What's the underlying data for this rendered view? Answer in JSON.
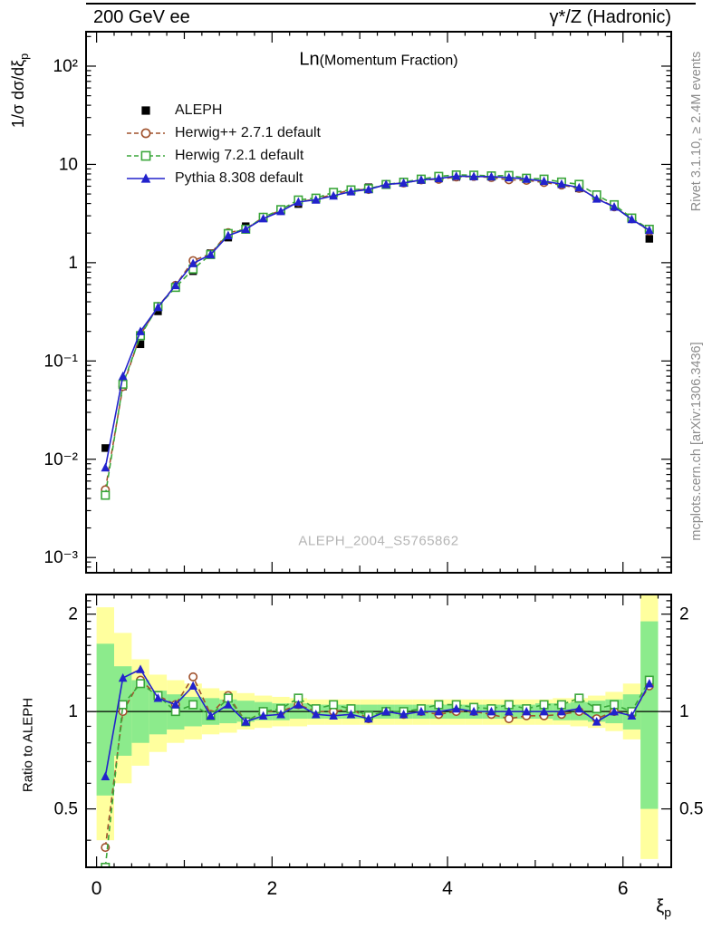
{
  "header": {
    "left": "200 GeV ee",
    "right": "γ*/Z (Hadronic)"
  },
  "titles": {
    "main": "Ln",
    "sub": "(Momentum Fraction)",
    "watermark": "ALEPH_2004_S5765862"
  },
  "side_notes": {
    "top_right": "Rivet 3.1.10, ≥ 2.4M events",
    "bottom_right": "mcplots.cern.ch [arXiv:1306.3436]"
  },
  "axes": {
    "ylabel_main": "1/σ dσ/dξ",
    "ylabel_main_sub": "p",
    "ylabel_ratio": "Ratio to ALEPH",
    "xlabel": "ξ",
    "xlabel_sub": "p"
  },
  "chart_data": {
    "type": "line",
    "title": "Ln(Momentum Fraction)",
    "xlabel": "ξ_p",
    "xlim": [
      -0.12,
      6.55
    ],
    "bin_width": 0.2,
    "xticks": [
      {
        "value": 0,
        "label": "0"
      },
      {
        "value": 2,
        "label": "2"
      },
      {
        "value": 4,
        "label": "4"
      },
      {
        "value": 6,
        "label": "6"
      }
    ],
    "x": [
      0.1,
      0.3,
      0.5,
      0.7,
      0.9,
      1.1,
      1.3,
      1.5,
      1.7,
      1.9,
      2.1,
      2.3,
      2.5,
      2.7,
      2.9,
      3.1,
      3.3,
      3.5,
      3.7,
      3.9,
      4.1,
      4.3,
      4.5,
      4.7,
      4.9,
      5.1,
      5.3,
      5.5,
      5.7,
      5.9,
      6.1,
      6.3
    ],
    "main_panel": {
      "ylabel": "1/σ dσ/dξ_p",
      "yscale": "log",
      "ylim": [
        0.0007,
        224
      ],
      "yticks": [
        {
          "value": 0.001,
          "label": "10⁻³"
        },
        {
          "value": 0.01,
          "label": "10⁻²"
        },
        {
          "value": 0.1,
          "label": "10⁻¹"
        },
        {
          "value": 1,
          "label": "1"
        },
        {
          "value": 10,
          "label": "10"
        },
        {
          "value": 100,
          "label": "10²"
        }
      ],
      "series": [
        {
          "name": "ALEPH",
          "color": "#000000",
          "marker": "square-filled",
          "line": "none",
          "values": [
            0.013,
            0.055,
            0.148,
            0.32,
            0.56,
            0.82,
            1.25,
            1.8,
            2.35,
            2.9,
            3.4,
            3.95,
            4.45,
            4.95,
            5.4,
            5.85,
            6.25,
            6.6,
            6.95,
            7.2,
            7.45,
            7.55,
            7.5,
            7.35,
            7.1,
            6.75,
            6.3,
            5.7,
            4.8,
            3.7,
            2.85,
            1.75
          ]
        },
        {
          "name": "Herwig++ 2.7.1 default",
          "color": "#a0522d",
          "marker": "circle-open",
          "line": "dashed",
          "values": [
            0.0049,
            0.055,
            0.185,
            0.358,
            0.588,
            1.05,
            1.23,
            2.02,
            2.19,
            2.9,
            3.4,
            4.15,
            4.45,
            4.95,
            5.51,
            5.56,
            6.25,
            6.47,
            6.95,
            7.06,
            7.45,
            7.55,
            7.35,
            6.98,
            6.89,
            6.55,
            6.17,
            5.7,
            4.56,
            3.7,
            2.79,
            2.1
          ]
        },
        {
          "name": "Herwig 7.2.1 default",
          "color": "#3aa63a",
          "marker": "square-open",
          "line": "dashed",
          "values": [
            0.0043,
            0.058,
            0.181,
            0.358,
            0.56,
            0.861,
            1.21,
            1.98,
            2.19,
            2.9,
            3.47,
            4.35,
            4.54,
            5.2,
            5.51,
            5.67,
            6.25,
            6.6,
            7.09,
            7.56,
            7.82,
            7.78,
            7.65,
            7.72,
            7.24,
            7.09,
            6.62,
            6.27,
            4.9,
            3.89,
            2.85,
            2.19
          ]
        },
        {
          "name": "Pythia 8.308 default",
          "color": "#2222cc",
          "marker": "triangle-filled",
          "line": "solid",
          "values": [
            0.0082,
            0.07,
            0.2,
            0.352,
            0.588,
            0.984,
            1.21,
            1.89,
            2.19,
            2.81,
            3.33,
            4.15,
            4.36,
            4.8,
            5.29,
            5.56,
            6.25,
            6.47,
            6.95,
            7.2,
            7.6,
            7.55,
            7.5,
            7.35,
            7.1,
            6.75,
            6.3,
            5.81,
            4.46,
            3.7,
            2.76,
            2.14
          ]
        }
      ]
    },
    "ratio_panel": {
      "ylabel": "Ratio to ALEPH",
      "yscale": "log",
      "ylim": [
        0.33,
        2.3
      ],
      "reference_line": 1,
      "yticks": [
        {
          "value": 0.5,
          "label": "0.5"
        },
        {
          "value": 1,
          "label": "1"
        },
        {
          "value": 2,
          "label": "2"
        }
      ],
      "bands": {
        "yellow": {
          "color": "#ffff9e",
          "lo": [
            0.4,
            0.6,
            0.68,
            0.75,
            0.8,
            0.82,
            0.85,
            0.86,
            0.88,
            0.89,
            0.9,
            0.9,
            0.91,
            0.91,
            0.91,
            0.91,
            0.91,
            0.91,
            0.91,
            0.91,
            0.91,
            0.91,
            0.91,
            0.91,
            0.91,
            0.91,
            0.91,
            0.9,
            0.89,
            0.87,
            0.82,
            0.35
          ],
          "hi": [
            2.1,
            1.75,
            1.45,
            1.3,
            1.25,
            1.22,
            1.18,
            1.16,
            1.14,
            1.12,
            1.11,
            1.1,
            1.09,
            1.09,
            1.09,
            1.09,
            1.09,
            1.09,
            1.09,
            1.09,
            1.09,
            1.09,
            1.09,
            1.09,
            1.09,
            1.09,
            1.1,
            1.1,
            1.12,
            1.15,
            1.22,
            2.3
          ]
        },
        "green": {
          "color": "#8ceb8c",
          "lo": [
            0.55,
            0.73,
            0.8,
            0.85,
            0.88,
            0.9,
            0.91,
            0.92,
            0.93,
            0.94,
            0.94,
            0.95,
            0.95,
            0.95,
            0.95,
            0.95,
            0.95,
            0.95,
            0.95,
            0.95,
            0.95,
            0.95,
            0.95,
            0.95,
            0.95,
            0.95,
            0.94,
            0.94,
            0.93,
            0.92,
            0.88,
            0.5
          ],
          "hi": [
            1.62,
            1.38,
            1.25,
            1.16,
            1.13,
            1.11,
            1.1,
            1.09,
            1.08,
            1.07,
            1.06,
            1.06,
            1.05,
            1.05,
            1.05,
            1.05,
            1.05,
            1.05,
            1.05,
            1.05,
            1.05,
            1.05,
            1.05,
            1.05,
            1.05,
            1.06,
            1.06,
            1.07,
            1.08,
            1.09,
            1.13,
            1.9
          ]
        }
      },
      "series": [
        {
          "name": "Herwig++ 2.7.1 default",
          "color": "#a0522d",
          "marker": "circle-open",
          "line": "dashed",
          "values": [
            0.38,
            1.0,
            1.25,
            1.12,
            1.05,
            1.28,
            0.98,
            1.12,
            0.93,
            1.0,
            1.0,
            1.05,
            1.0,
            1.0,
            1.02,
            0.95,
            1.0,
            0.98,
            1.0,
            0.98,
            1.0,
            1.0,
            0.98,
            0.95,
            0.97,
            0.97,
            0.98,
            1.0,
            0.95,
            1.0,
            0.98,
            1.2
          ]
        },
        {
          "name": "Herwig 7.2.1 default",
          "color": "#3aa63a",
          "marker": "square-open",
          "line": "dashed",
          "values": [
            0.33,
            1.05,
            1.22,
            1.12,
            1.0,
            1.05,
            0.97,
            1.1,
            0.93,
            1.0,
            1.02,
            1.1,
            1.02,
            1.05,
            1.02,
            0.97,
            1.0,
            1.0,
            1.02,
            1.05,
            1.05,
            1.03,
            1.02,
            1.05,
            1.02,
            1.05,
            1.05,
            1.1,
            1.02,
            1.05,
            1.0,
            1.25
          ]
        },
        {
          "name": "Pythia 8.308 default",
          "color": "#2222cc",
          "marker": "triangle-filled",
          "line": "solid",
          "values": [
            0.63,
            1.27,
            1.35,
            1.1,
            1.05,
            1.2,
            0.97,
            1.05,
            0.93,
            0.97,
            0.98,
            1.05,
            0.98,
            0.97,
            0.98,
            0.95,
            1.0,
            0.98,
            1.0,
            1.0,
            1.02,
            1.0,
            1.0,
            1.0,
            1.0,
            1.0,
            1.0,
            1.02,
            0.93,
            1.0,
            0.97,
            1.22
          ]
        }
      ]
    }
  }
}
